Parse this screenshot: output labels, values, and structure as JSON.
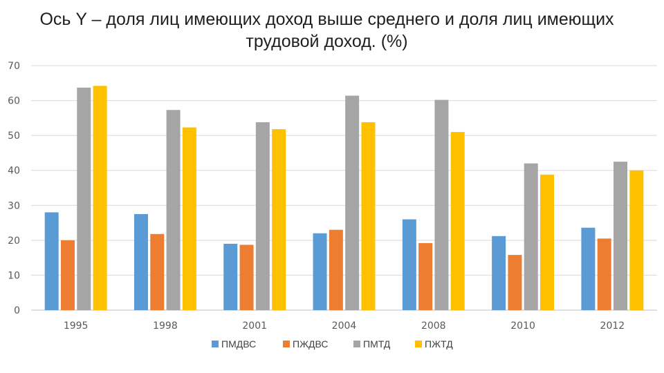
{
  "chart_data": {
    "type": "bar",
    "title_lines": [
      "Ось Y – доля лиц имеющих доход выше среднего и доля лиц имеющих",
      "трудовой доход. (%)"
    ],
    "categories": [
      "1995",
      "1998",
      "2001",
      "2004",
      "2008",
      "2010",
      "2012"
    ],
    "ylim": [
      0,
      70
    ],
    "yticks": [
      0,
      10,
      20,
      30,
      40,
      50,
      60,
      70
    ],
    "grid": true,
    "legend_position": "bottom",
    "series": [
      {
        "name": "ПМДВС",
        "color": "#5B9BD5",
        "values": [
          28.0,
          27.5,
          19.0,
          22.0,
          26.0,
          21.2,
          23.6
        ]
      },
      {
        "name": "ПЖДВС",
        "color": "#ED7D31",
        "values": [
          20.0,
          21.8,
          18.7,
          23.0,
          19.2,
          15.8,
          20.5
        ]
      },
      {
        "name": "ПМТД",
        "color": "#A5A5A5",
        "values": [
          63.7,
          57.3,
          53.8,
          61.4,
          60.2,
          42.0,
          42.5
        ]
      },
      {
        "name": "ПЖТД",
        "color": "#FFC000",
        "values": [
          64.2,
          52.3,
          51.8,
          53.8,
          51.0,
          38.8,
          40.0
        ]
      }
    ]
  }
}
